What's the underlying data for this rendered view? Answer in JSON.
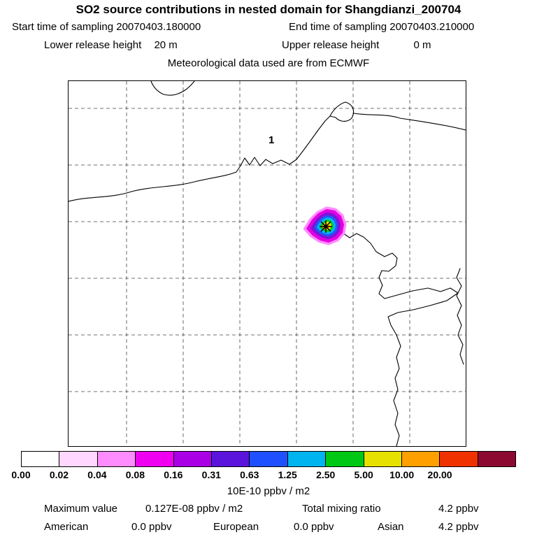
{
  "header": {
    "title": "SO2 source contributions in nested domain for Shangdianzi_200704",
    "start_time_label": "Start time of sampling",
    "start_time": "20070403.180000",
    "end_time_label": "End time of sampling",
    "end_time": "20070403.210000",
    "lower_release_label": "Lower release height",
    "lower_release_value": "20 m",
    "upper_release_label": "Upper release height",
    "upper_release_value": "0 m",
    "met_line": "Meteorological data used are from ECMWF"
  },
  "map": {
    "region_label": "1"
  },
  "colorbar": {
    "ticks": [
      "0.00",
      "0.02",
      "0.04",
      "0.08",
      "0.16",
      "0.31",
      "0.63",
      "1.25",
      "2.50",
      "5.00",
      "10.00",
      "20.00"
    ],
    "colors": [
      "#ffffff",
      "#ffd7ff",
      "#ff8cff",
      "#f000f0",
      "#aa00e6",
      "#5a14dc",
      "#1e50ff",
      "#00b4f0",
      "#00c814",
      "#e6e100",
      "#ffa000",
      "#f03200",
      "#8c0a32"
    ],
    "unit": "10E-10 ppbv / m2"
  },
  "footer": {
    "max_label": "Maximum value",
    "max_value": "0.127E-08 ppbv / m2",
    "total_label": "Total mixing ratio",
    "total_value": "4.2 ppbv",
    "regions": [
      {
        "name": "American",
        "value": "0.0 ppbv"
      },
      {
        "name": "European",
        "value": "0.0 ppbv"
      },
      {
        "name": "Asian",
        "value": "4.2 ppbv"
      }
    ]
  },
  "chart_data": {
    "type": "heatmap",
    "title": "SO2 source contributions in nested domain for Shangdianzi_200704",
    "subtitle": "Meteorological data used are from ECMWF",
    "sampling": {
      "start": "20070403.180000",
      "end": "20070403.210000"
    },
    "release_heights_m": {
      "lower": 20,
      "upper": 0
    },
    "colorbar_boundaries": [
      0.0,
      0.02,
      0.04,
      0.08,
      0.16,
      0.31,
      0.63,
      1.25,
      2.5,
      5.0,
      10.0,
      20.0
    ],
    "colorbar_unit": "10E-10 ppbv / m2",
    "legend_position": "bottom",
    "grid": "dashed lat/lon gridlines on map",
    "max_value": "0.127E-08 ppbv / m2",
    "total_mixing_ratio_ppbv": 4.2,
    "contributions_ppbv": {
      "American": 0.0,
      "European": 0.0,
      "Asian": 4.2
    },
    "annotations": [
      "region label 1 in upper map area",
      "single concentrated plume with receptor star marker near map center-right exceeding top colorbar bin"
    ]
  }
}
